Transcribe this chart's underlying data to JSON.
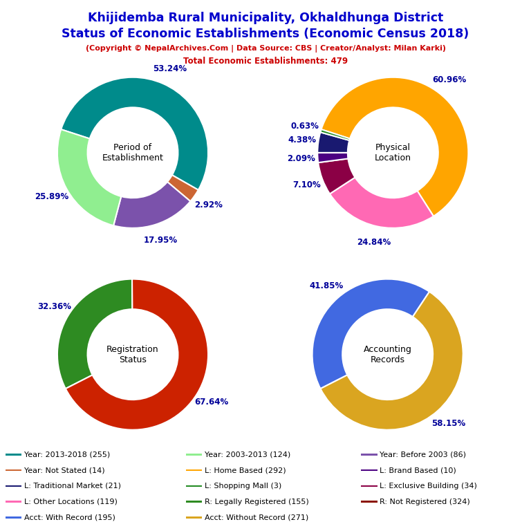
{
  "title_line1": "Khijidemba Rural Municipality, Okhaldhunga District",
  "title_line2": "Status of Economic Establishments (Economic Census 2018)",
  "subtitle": "(Copyright © NepalArchives.Com | Data Source: CBS | Creator/Analyst: Milan Karki)",
  "subtitle2": "Total Economic Establishments: 479",
  "title_color": "#0000CC",
  "subtitle_color": "#CC0000",
  "donut1": {
    "label": "Period of\nEstablishment",
    "values": [
      255,
      14,
      86,
      124
    ],
    "colors": [
      "#008B8B",
      "#CC6633",
      "#7B52AB",
      "#90EE90"
    ],
    "pct_labels": [
      "53.24%",
      "2.92%",
      "17.95%",
      "25.89%"
    ],
    "startangle": 162
  },
  "donut2": {
    "label": "Physical\nLocation",
    "values": [
      292,
      119,
      34,
      10,
      21,
      3
    ],
    "colors": [
      "#FFA500",
      "#FF69B4",
      "#8B0045",
      "#4B0082",
      "#191970",
      "#228B22"
    ],
    "pct_labels": [
      "60.96%",
      "24.84%",
      "7.10%",
      "2.09%",
      "4.38%",
      "0.63%"
    ],
    "startangle": 162
  },
  "donut3": {
    "label": "Registration\nStatus",
    "values": [
      155,
      324
    ],
    "colors": [
      "#2E8B22",
      "#CC2200"
    ],
    "pct_labels": [
      "32.36%",
      "67.64%"
    ],
    "startangle": 207
  },
  "donut4": {
    "label": "Accounting\nRecords",
    "values": [
      195,
      271
    ],
    "colors": [
      "#4169E1",
      "#DAA520"
    ],
    "pct_labels": [
      "41.85%",
      "58.15%"
    ],
    "startangle": 207
  },
  "legend_items_col1": [
    {
      "label": "Year: 2013-2018 (255)",
      "color": "#008B8B"
    },
    {
      "label": "Year: Not Stated (14)",
      "color": "#CC6633"
    },
    {
      "label": "L: Traditional Market (21)",
      "color": "#191970"
    },
    {
      "label": "L: Other Locations (119)",
      "color": "#FF69B4"
    },
    {
      "label": "Acct: With Record (195)",
      "color": "#4169E1"
    }
  ],
  "legend_items_col2": [
    {
      "label": "Year: 2003-2013 (124)",
      "color": "#90EE90"
    },
    {
      "label": "L: Home Based (292)",
      "color": "#FFA500"
    },
    {
      "label": "L: Shopping Mall (3)",
      "color": "#228B22"
    },
    {
      "label": "R: Legally Registered (155)",
      "color": "#2E8B22"
    },
    {
      "label": "Acct: Without Record (271)",
      "color": "#DAA520"
    }
  ],
  "legend_items_col3": [
    {
      "label": "Year: Before 2003 (86)",
      "color": "#7B52AB"
    },
    {
      "label": "L: Brand Based (10)",
      "color": "#4B0082"
    },
    {
      "label": "L: Exclusive Building (34)",
      "color": "#8B0045"
    },
    {
      "label": "R: Not Registered (324)",
      "color": "#8B1500"
    }
  ]
}
